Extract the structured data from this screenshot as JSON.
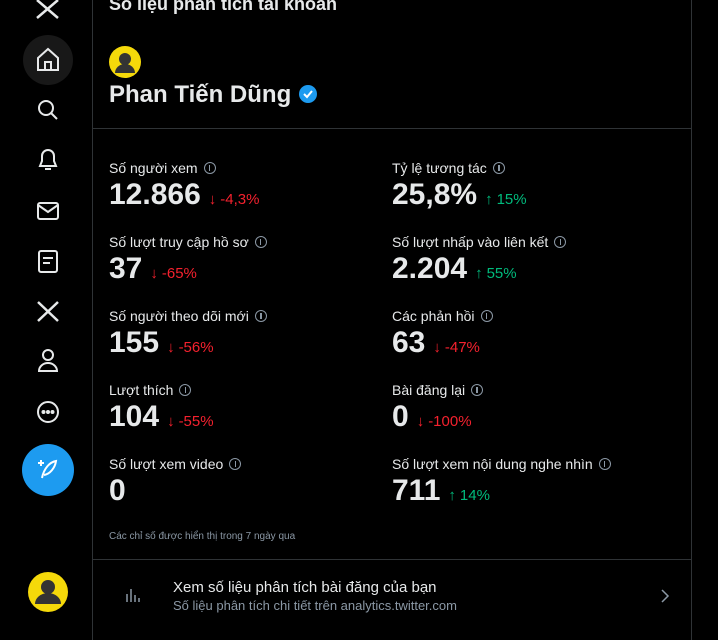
{
  "header": {
    "title": "Số liệu phân tích tài khoản",
    "name": "Phan Tiến Dũng"
  },
  "metrics": {
    "columns": [
      [
        {
          "label": "Số người xem",
          "value": "12.866",
          "change": "-4,3%"
        },
        {
          "label": "Số lượt truy cập hồ sơ",
          "value": "37",
          "change": "-65%"
        },
        {
          "label": "Số người theo dõi mới",
          "value": "155",
          "change": "-56%"
        },
        {
          "label": "Lượt thích",
          "value": "104",
          "change": "-55%"
        },
        {
          "label": "Số lượt xem video",
          "value": "0"
        }
      ],
      [
        {
          "label": "Tỷ lệ tương tác",
          "value": "25,8%",
          "change": "15%"
        },
        {
          "label": "Số lượt nhấp vào liên kết",
          "value": "2.204",
          "change": "55%"
        },
        {
          "label": "Các phản hồi",
          "value": "63",
          "change": "-47%"
        },
        {
          "label": "Bài đăng lại",
          "value": "0",
          "change": "-100%"
        },
        {
          "label": "Số lượt xem nội dung nghe nhìn",
          "value": "711",
          "change": "14%"
        }
      ]
    ],
    "note": "Các chỉ số được hiển thị trong 7 ngày qua"
  },
  "link": {
    "title": "Xem số liệu phân tích bài đăng của bạn",
    "subtitle": "Số liệu phân tích chi tiết trên analytics.twitter.com"
  }
}
